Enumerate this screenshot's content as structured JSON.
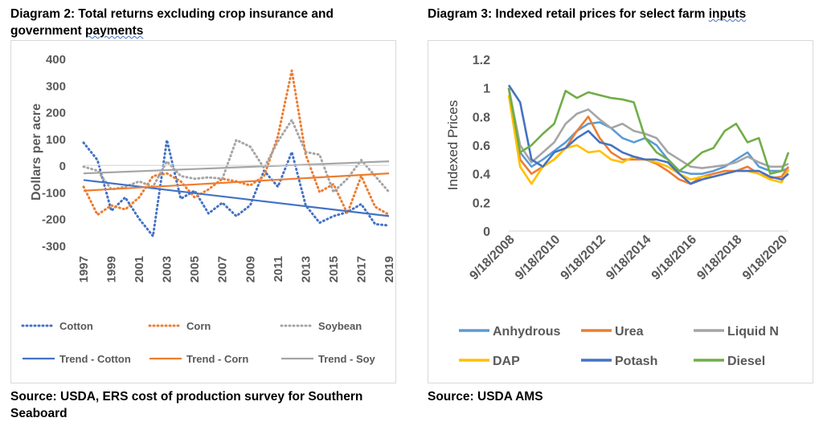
{
  "left": {
    "title_line1": "Diagram 2: Total returns excluding crop insurance and",
    "title_line2_a": "government ",
    "title_line2_b": "payments",
    "source_line1": "Source: USDA, ERS cost of production survey for Southern",
    "source_line2": "Seaboard"
  },
  "right": {
    "title_a": "Diagram 3: Indexed retail prices for select farm ",
    "title_b": "inputs",
    "source": "Source: USDA AMS"
  },
  "colors": {
    "cotton": "#4472c4",
    "corn": "#ed7d31",
    "soybean": "#a5a5a5",
    "anhydrous": "#5b9bd5",
    "urea": "#ed7d31",
    "liquid_n": "#a5a5a5",
    "dap": "#ffc000",
    "potash": "#4472c4",
    "diesel": "#70ad47"
  },
  "chart_data": [
    {
      "type": "line",
      "ylabel": "Dollars per acre",
      "ylim": [
        -300,
        400
      ],
      "y_ticks": [
        400,
        300,
        200,
        100,
        0,
        -100,
        -200,
        -300
      ],
      "x_ticks": [
        "1997",
        "1999",
        "2001",
        "2003",
        "2005",
        "2007",
        "2009",
        "2011",
        "2013",
        "2015",
        "2017",
        "2019"
      ],
      "x": [
        1997,
        1998,
        1999,
        2000,
        2001,
        2002,
        2003,
        2004,
        2005,
        2006,
        2007,
        2008,
        2009,
        2010,
        2011,
        2012,
        2013,
        2014,
        2015,
        2016,
        2017,
        2018,
        2019
      ],
      "legend_placement": "bottom",
      "series": [
        {
          "name": "Cotton",
          "style": "dotted",
          "values": [
            85,
            20,
            -170,
            -120,
            -200,
            -265,
            95,
            -125,
            -95,
            -180,
            -140,
            -190,
            -150,
            -20,
            -80,
            50,
            -150,
            -215,
            -190,
            -175,
            -145,
            -220,
            -225
          ]
        },
        {
          "name": "Corn",
          "style": "dotted",
          "values": [
            -80,
            -185,
            -150,
            -165,
            -120,
            -40,
            -30,
            -60,
            -120,
            -90,
            -50,
            -60,
            -75,
            -40,
            110,
            355,
            40,
            -100,
            -70,
            -180,
            -40,
            -155,
            -185
          ]
        },
        {
          "name": "Soybean",
          "style": "dotted",
          "values": [
            -5,
            -20,
            -90,
            -80,
            -60,
            -80,
            15,
            -40,
            -50,
            -45,
            -50,
            95,
            70,
            -10,
            90,
            170,
            50,
            40,
            -100,
            -50,
            20,
            -40,
            -100
          ]
        },
        {
          "name": "Trend - Cotton",
          "style": "solid",
          "values_endpoints": [
            -55,
            -190
          ]
        },
        {
          "name": "Trend - Corn",
          "style": "solid",
          "values_endpoints": [
            -95,
            -30
          ]
        },
        {
          "name": "Trend - Soy",
          "style": "solid",
          "values_endpoints": [
            -30,
            15
          ]
        }
      ]
    },
    {
      "type": "line",
      "ylabel": "Indexed Prices",
      "ylim": [
        0,
        1.2
      ],
      "y_ticks": [
        "0",
        "0.2",
        "0.4",
        "0.6",
        "0.8",
        "1",
        "1.2"
      ],
      "x_ticks": [
        "9/18/2008",
        "9/18/2010",
        "9/18/2012",
        "9/18/2014",
        "9/18/2016",
        "9/18/2018",
        "9/18/2020"
      ],
      "x_years": [
        2008.7,
        2009.2,
        2009.7,
        2010.2,
        2010.7,
        2011.2,
        2011.7,
        2012.2,
        2012.7,
        2013.2,
        2013.7,
        2014.2,
        2014.7,
        2015.2,
        2015.7,
        2016.2,
        2016.7,
        2017.2,
        2017.7,
        2018.2,
        2018.7,
        2019.2,
        2019.7,
        2020.2,
        2020.7,
        2021.0
      ],
      "legend_placement": "bottom",
      "series": [
        {
          "name": "Anhydrous",
          "values": [
            1.0,
            0.55,
            0.45,
            0.5,
            0.56,
            0.62,
            0.7,
            0.75,
            0.76,
            0.72,
            0.65,
            0.62,
            0.65,
            0.6,
            0.5,
            0.42,
            0.4,
            0.4,
            0.42,
            0.45,
            0.5,
            0.55,
            0.45,
            0.42,
            0.42,
            0.44
          ]
        },
        {
          "name": "Urea",
          "values": [
            1.0,
            0.5,
            0.4,
            0.45,
            0.5,
            0.58,
            0.7,
            0.8,
            0.65,
            0.55,
            0.5,
            0.5,
            0.5,
            0.47,
            0.42,
            0.36,
            0.33,
            0.38,
            0.4,
            0.42,
            0.42,
            0.45,
            0.4,
            0.37,
            0.38,
            0.45
          ]
        },
        {
          "name": "Liquid N",
          "values": [
            1.0,
            0.6,
            0.48,
            0.55,
            0.62,
            0.75,
            0.82,
            0.85,
            0.78,
            0.72,
            0.75,
            0.7,
            0.68,
            0.65,
            0.55,
            0.5,
            0.45,
            0.44,
            0.45,
            0.46,
            0.48,
            0.52,
            0.48,
            0.45,
            0.45,
            0.47
          ]
        },
        {
          "name": "DAP",
          "values": [
            0.95,
            0.45,
            0.33,
            0.45,
            0.5,
            0.58,
            0.6,
            0.55,
            0.56,
            0.5,
            0.48,
            0.52,
            0.5,
            0.48,
            0.45,
            0.4,
            0.36,
            0.38,
            0.38,
            0.4,
            0.42,
            0.42,
            0.4,
            0.36,
            0.34,
            0.43
          ]
        },
        {
          "name": "Potash",
          "values": [
            1.02,
            0.9,
            0.5,
            0.45,
            0.55,
            0.58,
            0.65,
            0.7,
            0.62,
            0.6,
            0.55,
            0.52,
            0.5,
            0.5,
            0.48,
            0.4,
            0.33,
            0.36,
            0.38,
            0.4,
            0.42,
            0.42,
            0.42,
            0.38,
            0.36,
            0.4
          ]
        },
        {
          "name": "Diesel",
          "values": [
            1.0,
            0.55,
            0.6,
            0.68,
            0.75,
            0.98,
            0.93,
            0.97,
            0.95,
            0.93,
            0.92,
            0.9,
            0.65,
            0.55,
            0.5,
            0.42,
            0.48,
            0.55,
            0.58,
            0.7,
            0.75,
            0.62,
            0.65,
            0.4,
            0.42,
            0.55
          ]
        }
      ]
    }
  ]
}
